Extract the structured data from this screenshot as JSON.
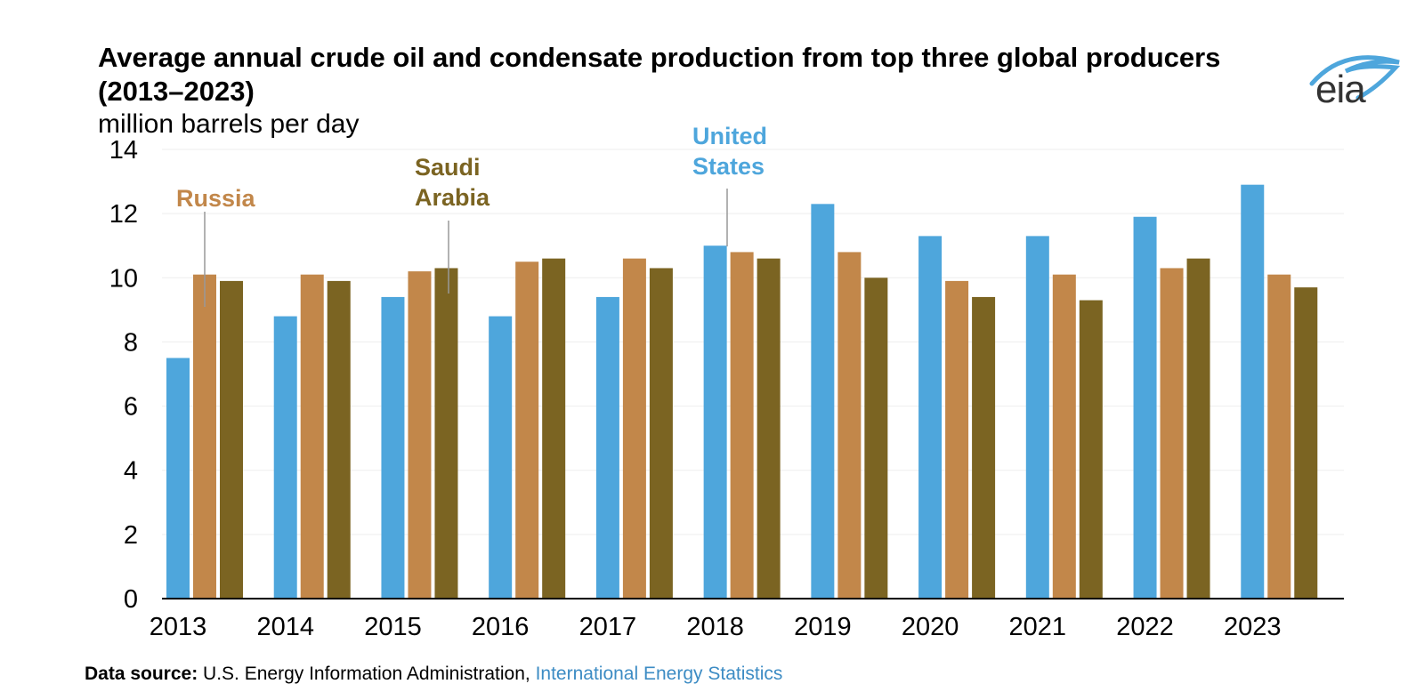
{
  "chart_data": {
    "type": "bar",
    "title": "Average annual crude oil and condensate production from top three global producers (2013–2023)",
    "ylabel": "million barrels per day",
    "xlabel": "",
    "categories": [
      "2013",
      "2014",
      "2015",
      "2016",
      "2017",
      "2018",
      "2019",
      "2020",
      "2021",
      "2022",
      "2023"
    ],
    "ylim": [
      0,
      14
    ],
    "yticks": [
      0,
      2,
      4,
      6,
      8,
      10,
      12,
      14
    ],
    "grid": true,
    "series": [
      {
        "name": "United States",
        "label_lines": [
          "United",
          "States"
        ],
        "color": "#4ea6dc",
        "values": [
          7.5,
          8.8,
          9.4,
          8.8,
          9.4,
          11.0,
          12.3,
          11.3,
          11.3,
          11.9,
          12.9
        ]
      },
      {
        "name": "Russia",
        "label_lines": [
          "Russia"
        ],
        "color": "#c2874a",
        "values": [
          10.1,
          10.1,
          10.2,
          10.5,
          10.6,
          10.8,
          10.8,
          9.9,
          10.1,
          10.3,
          10.1
        ]
      },
      {
        "name": "Saudi Arabia",
        "label_lines": [
          "Saudi",
          "Arabia"
        ],
        "color": "#7b6422",
        "values": [
          9.9,
          9.9,
          10.3,
          10.6,
          10.3,
          10.6,
          10.0,
          9.4,
          9.3,
          10.6,
          9.7
        ]
      }
    ]
  },
  "logo": {
    "text": "eia"
  },
  "source": {
    "label": "Data source:",
    "text": " U.S. Energy Information Administration, ",
    "link": "International Energy Statistics"
  },
  "colors": {
    "us": "#4ea6dc",
    "russia": "#c2874a",
    "saudi": "#7b6422",
    "link": "#3d8cc4"
  }
}
